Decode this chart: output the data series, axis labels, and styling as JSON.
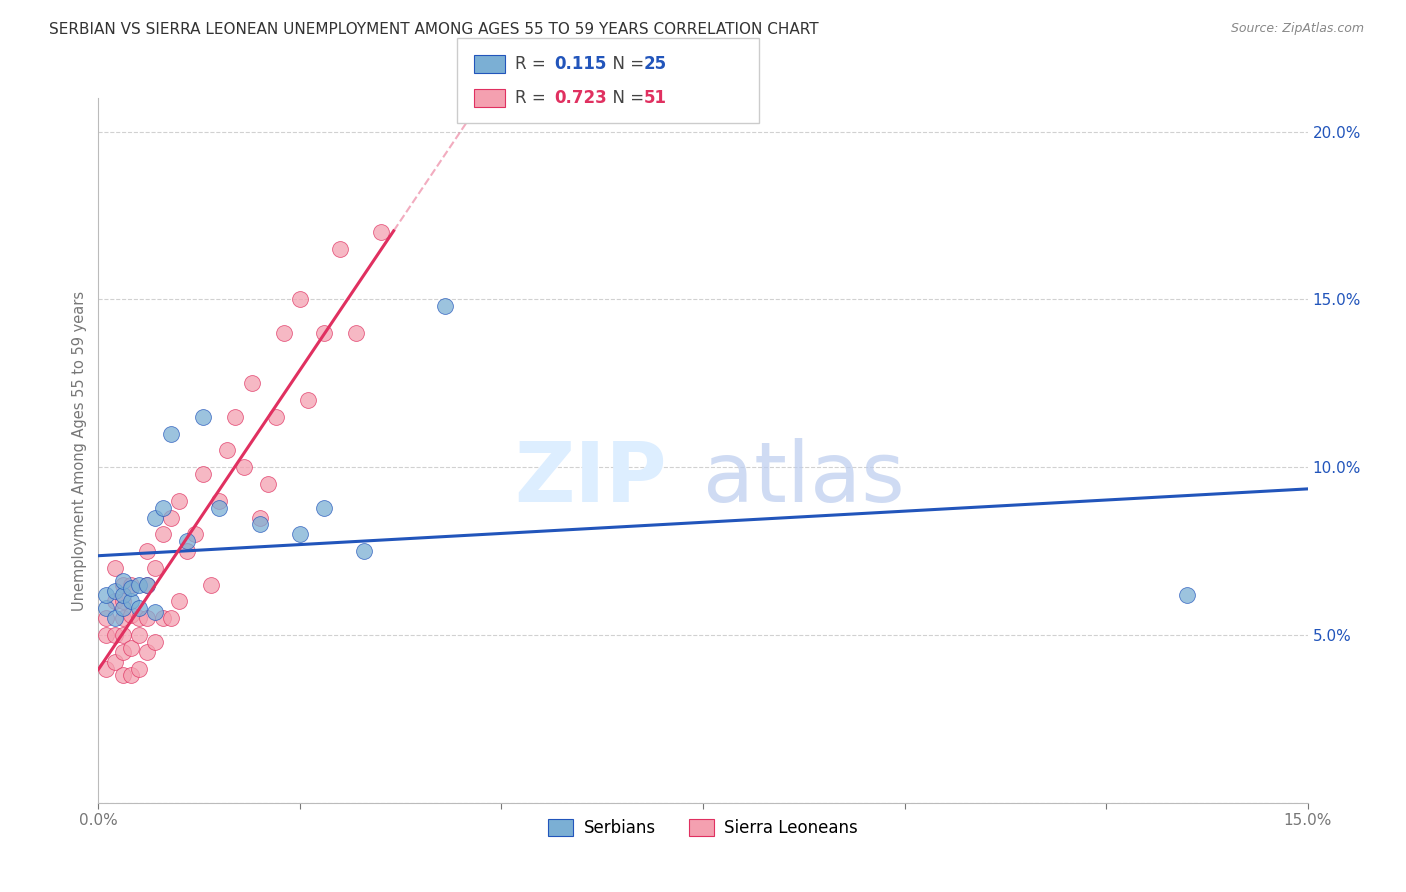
{
  "title": "SERBIAN VS SIERRA LEONEAN UNEMPLOYMENT AMONG AGES 55 TO 59 YEARS CORRELATION CHART",
  "source": "Source: ZipAtlas.com",
  "ylabel": "Unemployment Among Ages 55 to 59 years",
  "xlim": [
    0.0,
    0.15
  ],
  "ylim": [
    0.0,
    0.21
  ],
  "serbian_R": 0.115,
  "serbian_N": 25,
  "sierraleone_R": 0.723,
  "sierraleone_N": 51,
  "serbian_color": "#7BAFD4",
  "sierraleone_color": "#F4A0B0",
  "trend_serbian_color": "#2255BB",
  "trend_sierraleone_color": "#E03060",
  "serbian_x": [
    0.001,
    0.001,
    0.002,
    0.002,
    0.003,
    0.003,
    0.003,
    0.004,
    0.004,
    0.005,
    0.005,
    0.006,
    0.007,
    0.007,
    0.008,
    0.009,
    0.011,
    0.013,
    0.015,
    0.02,
    0.025,
    0.028,
    0.033,
    0.043,
    0.135
  ],
  "serbian_y": [
    0.058,
    0.062,
    0.055,
    0.063,
    0.058,
    0.062,
    0.066,
    0.06,
    0.064,
    0.058,
    0.065,
    0.065,
    0.057,
    0.085,
    0.088,
    0.11,
    0.078,
    0.115,
    0.088,
    0.083,
    0.08,
    0.088,
    0.075,
    0.148,
    0.062
  ],
  "sierraleone_x": [
    0.001,
    0.001,
    0.001,
    0.002,
    0.002,
    0.002,
    0.002,
    0.003,
    0.003,
    0.003,
    0.003,
    0.003,
    0.003,
    0.004,
    0.004,
    0.004,
    0.004,
    0.005,
    0.005,
    0.005,
    0.006,
    0.006,
    0.006,
    0.006,
    0.007,
    0.007,
    0.008,
    0.008,
    0.009,
    0.009,
    0.01,
    0.01,
    0.011,
    0.012,
    0.013,
    0.014,
    0.015,
    0.016,
    0.017,
    0.018,
    0.019,
    0.02,
    0.021,
    0.022,
    0.023,
    0.025,
    0.026,
    0.028,
    0.03,
    0.032,
    0.035
  ],
  "sierraleone_y": [
    0.04,
    0.05,
    0.055,
    0.042,
    0.05,
    0.06,
    0.07,
    0.038,
    0.045,
    0.05,
    0.055,
    0.06,
    0.065,
    0.038,
    0.046,
    0.056,
    0.065,
    0.04,
    0.05,
    0.055,
    0.045,
    0.055,
    0.065,
    0.075,
    0.048,
    0.07,
    0.055,
    0.08,
    0.055,
    0.085,
    0.06,
    0.09,
    0.075,
    0.08,
    0.098,
    0.065,
    0.09,
    0.105,
    0.115,
    0.1,
    0.125,
    0.085,
    0.095,
    0.115,
    0.14,
    0.15,
    0.12,
    0.14,
    0.165,
    0.14,
    0.17
  ],
  "watermark_zip": "ZIP",
  "watermark_atlas": "atlas",
  "background_color": "#ffffff",
  "grid_color": "#cccccc"
}
